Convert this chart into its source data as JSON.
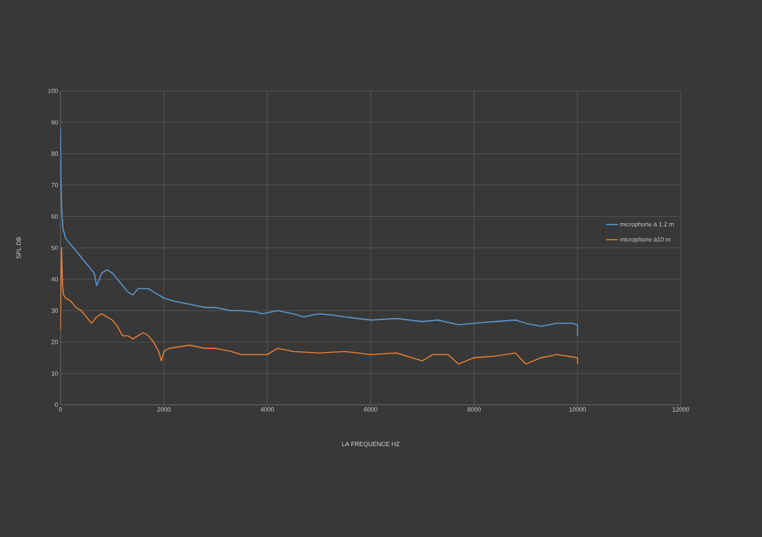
{
  "chart_data": {
    "type": "line",
    "xlabel": "LA FREQUENCE  HZ",
    "ylabel": "SPL DB",
    "xlim": [
      0,
      12000
    ],
    "xticks": [
      0,
      2000,
      4000,
      6000,
      8000,
      10000,
      12000
    ],
    "ylim": [
      0,
      100
    ],
    "yticks": [
      0,
      10,
      20,
      30,
      40,
      50,
      60,
      70,
      80,
      90,
      100
    ],
    "grid": true,
    "legend": "right",
    "marker": "none",
    "line_style": "solid",
    "series": [
      {
        "name": "microphone à 1.2 m",
        "color": "#5b9bd5",
        "x": [
          0,
          10,
          30,
          50,
          100,
          200,
          300,
          400,
          550,
          650,
          700,
          800,
          900,
          1000,
          1100,
          1200,
          1300,
          1400,
          1500,
          1600,
          1700,
          1800,
          1900,
          2000,
          2200,
          2500,
          2800,
          3000,
          3300,
          3500,
          3800,
          3900,
          4200,
          4500,
          4700,
          5000,
          5300,
          5500,
          6000,
          6500,
          7000,
          7300,
          7700,
          8000,
          8400,
          8800,
          9000,
          9300,
          9600,
          9900,
          10000,
          10000
        ],
        "values": [
          88,
          70,
          60,
          56,
          53,
          51,
          49,
          47,
          44,
          42,
          38,
          42,
          43,
          42,
          40,
          38,
          36,
          35,
          37,
          37,
          37,
          36,
          35,
          34,
          33,
          32,
          31,
          31,
          30,
          30,
          29.5,
          29,
          30,
          29,
          28,
          29,
          28.5,
          28,
          27,
          27.5,
          26.5,
          27,
          25.5,
          26,
          26.5,
          27,
          26,
          25,
          26,
          26,
          25.5,
          22
        ]
      },
      {
        "name": "microphone à10 m",
        "color": "#ed7d31",
        "x": [
          0,
          10,
          20,
          40,
          60,
          100,
          200,
          300,
          400,
          500,
          600,
          700,
          800,
          900,
          1000,
          1100,
          1200,
          1300,
          1400,
          1500,
          1600,
          1700,
          1800,
          1900,
          1950,
          2000,
          2100,
          2300,
          2500,
          2800,
          3000,
          3300,
          3500,
          3800,
          4000,
          4200,
          4500,
          5000,
          5500,
          6000,
          6500,
          7000,
          7200,
          7500,
          7700,
          8000,
          8400,
          8800,
          9000,
          9300,
          9600,
          10000,
          10000
        ],
        "values": [
          24,
          40,
          50,
          38,
          35,
          34,
          33,
          31,
          30,
          28,
          26,
          28,
          29,
          28,
          27,
          25,
          22,
          22,
          21,
          22,
          23,
          22,
          20,
          17,
          14,
          17,
          18,
          18.5,
          19,
          18,
          18,
          17,
          16,
          16,
          16,
          18,
          17,
          16.5,
          17,
          16,
          16.5,
          14,
          16,
          16,
          13,
          15,
          15.5,
          16.5,
          13,
          15,
          16,
          15,
          13
        ]
      }
    ]
  }
}
